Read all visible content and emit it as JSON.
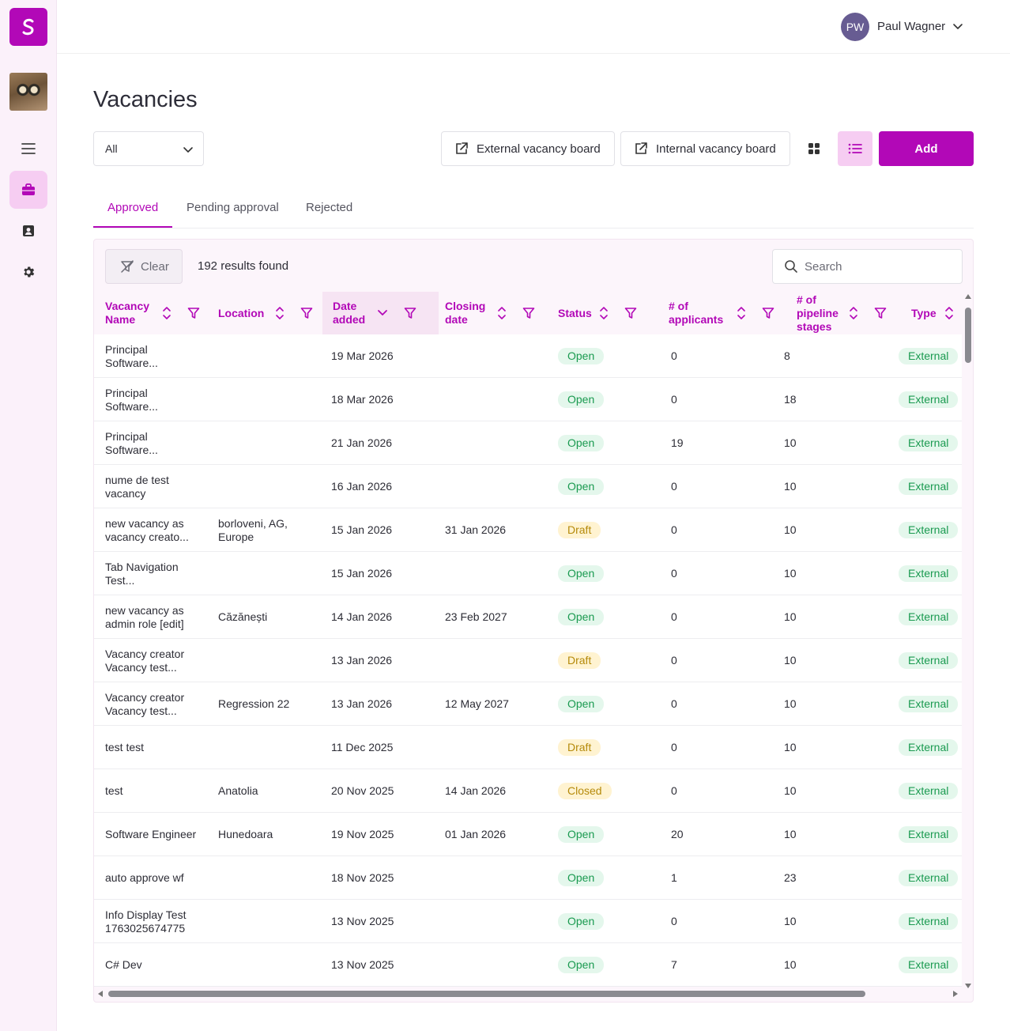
{
  "app": {
    "logo_letter": "S",
    "brand_color": "#b208b7"
  },
  "sidebar": {
    "items": [
      {
        "icon": "menu-icon"
      },
      {
        "icon": "briefcase-icon",
        "active": true
      },
      {
        "icon": "contact-card-icon"
      },
      {
        "icon": "gear-icon"
      }
    ]
  },
  "user": {
    "initials": "PW",
    "name": "Paul Wagner"
  },
  "page": {
    "title": "Vacancies"
  },
  "filter": {
    "selected": "All"
  },
  "toolbar": {
    "external_board_label": "External vacancy board",
    "internal_board_label": "Internal vacancy board",
    "add_label": "Add"
  },
  "tabs": [
    {
      "label": "Approved",
      "active": true
    },
    {
      "label": "Pending approval",
      "active": false
    },
    {
      "label": "Rejected",
      "active": false
    }
  ],
  "list": {
    "clear_label": "Clear",
    "results_text": "192 results found",
    "search_placeholder": "Search"
  },
  "table": {
    "columns": [
      {
        "key": "name",
        "label": "Vacancy Name"
      },
      {
        "key": "location",
        "label": "Location"
      },
      {
        "key": "date_added",
        "label": "Date added",
        "sorted": "desc"
      },
      {
        "key": "closing_date",
        "label": "Closing date"
      },
      {
        "key": "status",
        "label": "Status"
      },
      {
        "key": "applicants",
        "label": "# of applicants"
      },
      {
        "key": "stages",
        "label": "# of pipeline stages"
      },
      {
        "key": "type",
        "label": "Type"
      }
    ],
    "rows": [
      {
        "name": "Principal Software...",
        "location": "",
        "date_added": "19 Mar 2026",
        "closing_date": "",
        "status": "Open",
        "applicants": "0",
        "stages": "8",
        "type": "External"
      },
      {
        "name": "Principal Software...",
        "location": "",
        "date_added": "18 Mar 2026",
        "closing_date": "",
        "status": "Open",
        "applicants": "0",
        "stages": "18",
        "type": "External"
      },
      {
        "name": "Principal Software...",
        "location": "",
        "date_added": "21 Jan 2026",
        "closing_date": "",
        "status": "Open",
        "applicants": "19",
        "stages": "10",
        "type": "External"
      },
      {
        "name": "nume de test vacancy",
        "location": "",
        "date_added": "16 Jan 2026",
        "closing_date": "",
        "status": "Open",
        "applicants": "0",
        "stages": "10",
        "type": "External"
      },
      {
        "name": "new vacancy as vacancy creato...",
        "location": "borloveni, AG, Europe",
        "date_added": "15 Jan 2026",
        "closing_date": "31 Jan 2026",
        "status": "Draft",
        "applicants": "0",
        "stages": "10",
        "type": "External"
      },
      {
        "name": "Tab Navigation Test...",
        "location": "",
        "date_added": "15 Jan 2026",
        "closing_date": "",
        "status": "Open",
        "applicants": "0",
        "stages": "10",
        "type": "External"
      },
      {
        "name": "new vacancy as admin role [edit]",
        "location": "Căzănești",
        "date_added": "14 Jan 2026",
        "closing_date": "23 Feb 2027",
        "status": "Open",
        "applicants": "0",
        "stages": "10",
        "type": "External"
      },
      {
        "name": "Vacancy creator Vacancy test...",
        "location": "",
        "date_added": "13 Jan 2026",
        "closing_date": "",
        "status": "Draft",
        "applicants": "0",
        "stages": "10",
        "type": "External"
      },
      {
        "name": "Vacancy creator Vacancy test...",
        "location": "Regression 22",
        "date_added": "13 Jan 2026",
        "closing_date": "12 May 2027",
        "status": "Open",
        "applicants": "0",
        "stages": "10",
        "type": "External"
      },
      {
        "name": "test test",
        "location": "",
        "date_added": "11 Dec 2025",
        "closing_date": "",
        "status": "Draft",
        "applicants": "0",
        "stages": "10",
        "type": "External"
      },
      {
        "name": "test",
        "location": "Anatolia",
        "date_added": "20 Nov 2025",
        "closing_date": "14 Jan 2026",
        "status": "Closed",
        "applicants": "0",
        "stages": "10",
        "type": "External"
      },
      {
        "name": "Software Engineer",
        "location": "Hunedoara",
        "date_added": "19 Nov 2025",
        "closing_date": "01 Jan 2026",
        "status": "Open",
        "applicants": "20",
        "stages": "10",
        "type": "External"
      },
      {
        "name": "auto approve wf",
        "location": "",
        "date_added": "18 Nov 2025",
        "closing_date": "",
        "status": "Open",
        "applicants": "1",
        "stages": "23",
        "type": "External"
      },
      {
        "name": "Info Display Test 1763025674775",
        "location": "",
        "date_added": "13 Nov 2025",
        "closing_date": "",
        "status": "Open",
        "applicants": "0",
        "stages": "10",
        "type": "External"
      },
      {
        "name": "C# Dev",
        "location": "",
        "date_added": "13 Nov 2025",
        "closing_date": "",
        "status": "Open",
        "applicants": "7",
        "stages": "10",
        "type": "External"
      }
    ]
  }
}
